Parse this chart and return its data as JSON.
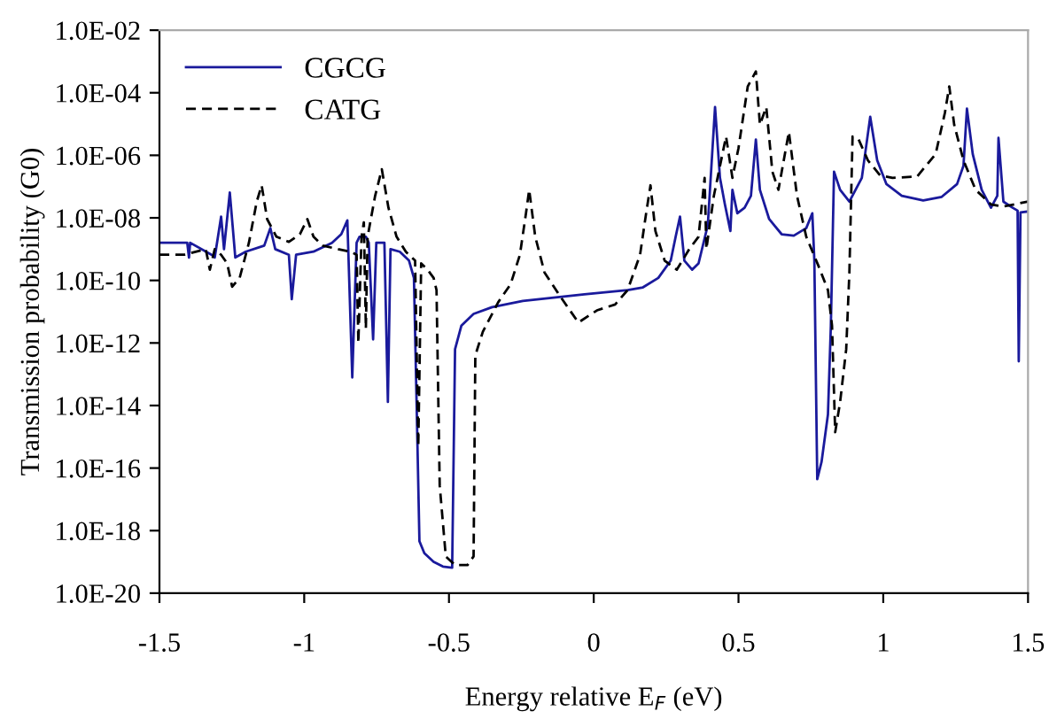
{
  "chart_data": {
    "type": "line",
    "xlabel": "Energy relative E$_{F}$ (eV)",
    "ylabel": "Transmission probability (G0)",
    "log": "y",
    "xlim": [
      -1.5,
      1.5
    ],
    "xticks": [
      -1.5,
      -1,
      -0.5,
      0,
      0.5,
      1,
      1.5
    ],
    "ylim": [
      1e-20,
      0.01
    ],
    "yticks": [
      {
        "value": 1e-20,
        "label": "1.0E-20"
      },
      {
        "value": 1e-18,
        "label": "1.0E-18"
      },
      {
        "value": 1e-16,
        "label": "1.0E-16"
      },
      {
        "value": 1e-14,
        "label": "1.0E-14"
      },
      {
        "value": 1e-12,
        "label": "1.0E-12"
      },
      {
        "value": 1e-10,
        "label": "1.0E-10"
      },
      {
        "value": 1e-08,
        "label": "1.0E-08"
      },
      {
        "value": 1e-06,
        "label": "1.0E-06"
      },
      {
        "value": 0.0001,
        "label": "1.0E-04"
      },
      {
        "value": 0.01,
        "label": "1.0E-02"
      }
    ],
    "grid": false,
    "legend": "top left",
    "marker": "none",
    "series": [
      {
        "name": "CGCG",
        "color": "#1a1a9c",
        "line_style": "solid",
        "x": [
          -1.5,
          -1.404,
          -1.398,
          -1.394,
          -1.32,
          -1.309,
          -1.287,
          -1.277,
          -1.257,
          -1.238,
          -1.202,
          -1.138,
          -1.117,
          -1.1,
          -1.053,
          -1.043,
          -1.028,
          -0.968,
          -0.904,
          -0.872,
          -0.851,
          -0.834,
          -0.819,
          -0.809,
          -0.787,
          -0.777,
          -0.762,
          -0.751,
          -0.723,
          -0.711,
          -0.702,
          -0.67,
          -0.638,
          -0.621,
          -0.611,
          -0.602,
          -0.585,
          -0.553,
          -0.521,
          -0.489,
          -0.479,
          -0.457,
          -0.415,
          -0.351,
          -0.245,
          -0.032,
          0.117,
          0.17,
          0.223,
          0.266,
          0.283,
          0.298,
          0.313,
          0.34,
          0.362,
          0.394,
          0.419,
          0.436,
          0.453,
          0.472,
          0.479,
          0.496,
          0.521,
          0.543,
          0.56,
          0.574,
          0.606,
          0.649,
          0.691,
          0.734,
          0.755,
          0.762,
          0.772,
          0.787,
          0.809,
          0.819,
          0.83,
          0.851,
          0.883,
          0.926,
          0.955,
          0.979,
          1.011,
          1.064,
          1.138,
          1.202,
          1.255,
          1.277,
          1.289,
          1.309,
          1.34,
          1.372,
          1.394,
          1.398,
          1.415,
          1.447,
          1.464,
          1.468,
          1.474,
          1.5
        ],
        "values": [
          1.6e-09,
          1.6e-09,
          5.4e-10,
          1.6e-09,
          6.6e-10,
          5.4e-10,
          1.1e-08,
          1e-09,
          6.5e-08,
          5.4e-10,
          8.3e-10,
          1.3e-09,
          4.7e-09,
          1e-09,
          6.6e-10,
          2.5e-11,
          6.6e-10,
          8.3e-10,
          1.6e-09,
          3e-09,
          8.3e-09,
          7.9e-14,
          1.6e-09,
          2.5e-09,
          2.5e-09,
          1.6e-09,
          1.3e-12,
          1.6e-09,
          1.6e-09,
          1.3e-14,
          1e-09,
          8.3e-10,
          4.3e-10,
          1.2e-10,
          5.2e-15,
          4.6e-19,
          1.9e-19,
          1e-19,
          7.1e-20,
          6.5e-20,
          6.3e-13,
          3.6e-12,
          8.5e-12,
          1.4e-11,
          2.2e-11,
          3.6e-11,
          4.9e-11,
          6e-11,
          1.2e-10,
          4.3e-10,
          2.5e-09,
          1.1e-08,
          4.3e-10,
          2.2e-10,
          3.5e-10,
          5.9e-09,
          3.5e-05,
          1.9e-07,
          2.7e-08,
          3.8e-09,
          7.9e-08,
          1.4e-08,
          2.1e-08,
          5.1e-08,
          3.2e-06,
          7.9e-08,
          9.1e-09,
          3e-09,
          2.7e-09,
          4.7e-09,
          1.4e-08,
          4.3e-10,
          4.4e-17,
          1.6e-16,
          5.2e-15,
          3.6e-12,
          3e-07,
          7.9e-08,
          3.3e-08,
          1.9e-07,
          1.7e-05,
          6.9e-07,
          1.2e-07,
          5.1e-08,
          3.6e-08,
          4.7e-08,
          1.2e-07,
          4.6e-07,
          3.1e-05,
          1.1e-06,
          7.9e-08,
          2.1e-08,
          5.1e-08,
          3.6e-06,
          3.3e-08,
          2.1e-08,
          1.7e-08,
          2.6e-13,
          1.5e-08,
          1.6e-08
        ]
      },
      {
        "name": "CATG",
        "color": "#000000",
        "line_style": "dashed",
        "x": [
          -1.5,
          -1.415,
          -1.34,
          -1.326,
          -1.309,
          -1.287,
          -1.266,
          -1.249,
          -1.223,
          -1.191,
          -1.164,
          -1.147,
          -1.128,
          -1.096,
          -1.053,
          -1.015,
          -0.989,
          -0.968,
          -0.936,
          -0.883,
          -0.84,
          -0.819,
          -0.813,
          -0.802,
          -0.794,
          -0.787,
          -0.781,
          -0.755,
          -0.732,
          -0.709,
          -0.681,
          -0.649,
          -0.617,
          -0.606,
          -0.596,
          -0.574,
          -0.553,
          -0.543,
          -0.532,
          -0.511,
          -0.479,
          -0.436,
          -0.415,
          -0.409,
          -0.383,
          -0.33,
          -0.287,
          -0.255,
          -0.234,
          -0.223,
          -0.202,
          -0.17,
          -0.117,
          -0.053,
          0.011,
          0.074,
          0.117,
          0.16,
          0.181,
          0.196,
          0.213,
          0.245,
          0.287,
          0.33,
          0.362,
          0.383,
          0.389,
          0.415,
          0.457,
          0.479,
          0.5,
          0.532,
          0.56,
          0.574,
          0.596,
          0.617,
          0.638,
          0.674,
          0.702,
          0.734,
          0.777,
          0.809,
          0.823,
          0.834,
          0.851,
          0.872,
          0.883,
          0.894,
          0.915,
          0.947,
          0.989,
          1.032,
          1.117,
          1.181,
          1.213,
          1.228,
          1.245,
          1.277,
          1.319,
          1.372,
          1.415,
          1.5
        ],
        "values": [
          6.6e-10,
          6.6e-10,
          1e-09,
          2.2e-10,
          1e-09,
          6.6e-10,
          3.5e-10,
          6.3e-11,
          1.2e-10,
          1.6e-09,
          3.3e-08,
          1.1e-07,
          9.1e-09,
          2.5e-09,
          1.7e-09,
          3e-09,
          9.1e-09,
          2.5e-09,
          1.3e-09,
          1e-09,
          8.3e-10,
          6.6e-10,
          1e-12,
          2.5e-09,
          7.2e-09,
          2.9e-12,
          2.5e-09,
          5.1e-08,
          3.6e-07,
          2.1e-08,
          2.5e-09,
          8.3e-10,
          4.3e-10,
          5e-16,
          3.5e-10,
          2.2e-10,
          1.2e-10,
          4.9e-11,
          2.8e-17,
          1.5e-19,
          7.9e-20,
          7.9e-20,
          1.5e-19,
          4e-13,
          2.3e-12,
          2e-11,
          7.6e-11,
          6.6e-10,
          1.4e-08,
          7.9e-08,
          2.5e-09,
          1.8e-10,
          3.2e-11,
          4.5e-12,
          1.1e-11,
          1.7e-11,
          4.9e-11,
          6.6e-10,
          1.4e-08,
          1.1e-07,
          3.8e-09,
          4.3e-10,
          2.2e-10,
          1e-09,
          2.5e-09,
          1.9e-07,
          1e-09,
          5.1e-08,
          4e-06,
          1.9e-07,
          1.7e-06,
          0.00016,
          0.00048,
          9.5e-06,
          3.5e-05,
          3e-07,
          7.9e-08,
          5.6e-06,
          5.1e-08,
          2.5e-09,
          2.8e-10,
          4.9e-11,
          3.6e-12,
          1.4e-15,
          1.3e-14,
          6.3e-13,
          1.8e-10,
          4e-06,
          3.2e-06,
          6.9e-07,
          2.3e-07,
          1.9e-07,
          2.1e-07,
          1.1e-06,
          2.3e-05,
          0.00016,
          9.5e-06,
          6.9e-07,
          7.9e-08,
          2.7e-08,
          2.3e-08,
          3.3e-08
        ]
      }
    ]
  }
}
